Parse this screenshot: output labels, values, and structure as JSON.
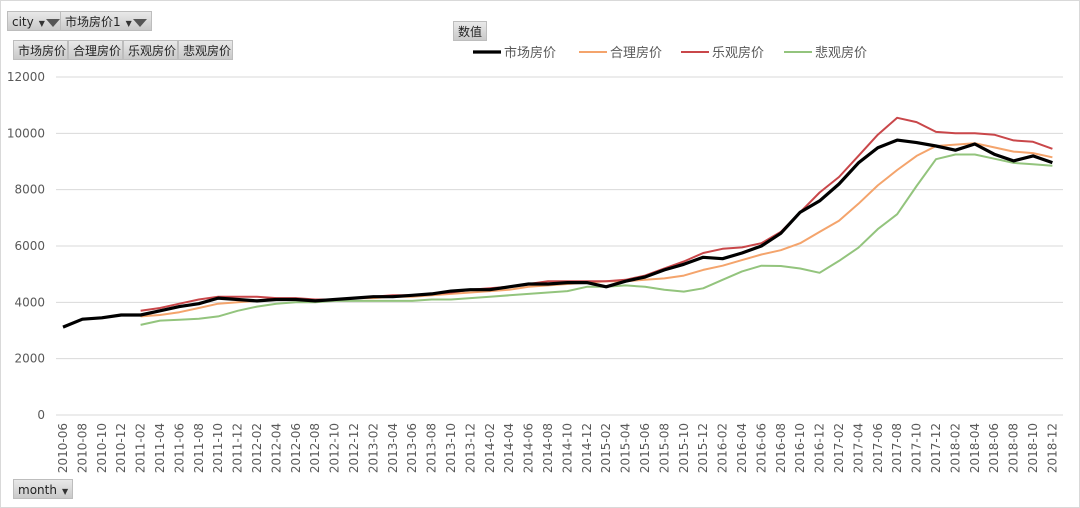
{
  "filters": {
    "city": "city",
    "price_field": "市场房价1"
  },
  "value_buttons": [
    "市场房价",
    "合理房价",
    "乐观房价",
    "悲观房价"
  ],
  "values_button": "数值",
  "axis_button": "month",
  "chart_data": {
    "type": "line",
    "xlabel": "",
    "ylabel": "",
    "ylim": [
      0,
      12000
    ],
    "yticks": [
      0,
      2000,
      4000,
      6000,
      8000,
      10000,
      12000
    ],
    "grid": true,
    "legend_position": "top",
    "x": [
      "2010-06",
      "2010-08",
      "2010-10",
      "2010-12",
      "2011-02",
      "2011-04",
      "2011-06",
      "2011-08",
      "2011-10",
      "2011-12",
      "2012-02",
      "2012-04",
      "2012-06",
      "2012-08",
      "2012-10",
      "2012-12",
      "2013-02",
      "2013-04",
      "2013-06",
      "2013-08",
      "2013-10",
      "2013-12",
      "2014-02",
      "2014-04",
      "2014-06",
      "2014-08",
      "2014-10",
      "2014-12",
      "2015-02",
      "2015-04",
      "2015-06",
      "2015-08",
      "2015-10",
      "2015-12",
      "2016-02",
      "2016-04",
      "2016-06",
      "2016-08",
      "2016-10",
      "2016-12",
      "2017-02",
      "2017-04",
      "2017-06",
      "2017-08",
      "2017-10",
      "2017-12",
      "2018-02",
      "2018-04",
      "2018-06",
      "2018-08",
      "2018-10",
      "2018-12"
    ],
    "series": [
      {
        "name": "市场房价",
        "color": "#000000",
        "values": [
          3120,
          3400,
          3450,
          3550,
          3550,
          3700,
          3850,
          3950,
          4150,
          4100,
          4050,
          4100,
          4100,
          4050,
          4100,
          4150,
          4200,
          4200,
          4250,
          4300,
          4400,
          4450,
          4450,
          4550,
          4650,
          4650,
          4700,
          4700,
          4550,
          4750,
          4900,
          5150,
          5350,
          5600,
          5550,
          5750,
          6000,
          6450,
          7200,
          7600,
          8200,
          8950,
          9490,
          9760,
          9670,
          9550,
          9400,
          9620,
          9260,
          9020,
          9200,
          8960
        ]
      },
      {
        "name": "合理房价",
        "color": "#F4A46C",
        "values": [
          null,
          null,
          null,
          null,
          3500,
          3550,
          3650,
          3800,
          3950,
          4000,
          4050,
          4100,
          4100,
          4100,
          4100,
          4150,
          4150,
          4200,
          4200,
          4250,
          4300,
          4350,
          4400,
          4450,
          4550,
          4600,
          4650,
          4700,
          4750,
          4750,
          4800,
          4850,
          4950,
          5150,
          5300,
          5500,
          5700,
          5850,
          6100,
          6500,
          6900,
          7500,
          8150,
          8700,
          9200,
          9550,
          9600,
          9650,
          9500,
          9350,
          9300,
          9150
        ]
      },
      {
        "name": "乐观房价",
        "color": "#C9474A",
        "values": [
          null,
          null,
          null,
          null,
          3700,
          3800,
          3950,
          4100,
          4200,
          4200,
          4200,
          4150,
          4150,
          4100,
          4100,
          4150,
          4200,
          4250,
          4250,
          4300,
          4350,
          4450,
          4500,
          4550,
          4650,
          4750,
          4750,
          4750,
          4750,
          4800,
          4950,
          5200,
          5450,
          5750,
          5900,
          5950,
          6100,
          6500,
          7200,
          7900,
          8450,
          9200,
          9950,
          10550,
          10400,
          10050,
          10000,
          10000,
          9950,
          9750,
          9700,
          9450
        ]
      },
      {
        "name": "悲观房价",
        "color": "#93C47D",
        "values": [
          null,
          null,
          null,
          null,
          3200,
          3350,
          3380,
          3420,
          3500,
          3700,
          3850,
          3950,
          4000,
          4000,
          4050,
          4050,
          4050,
          4050,
          4050,
          4100,
          4100,
          4150,
          4200,
          4250,
          4300,
          4350,
          4400,
          4550,
          4550,
          4600,
          4550,
          4450,
          4380,
          4500,
          4800,
          5100,
          5300,
          5290,
          5200,
          5050,
          5470,
          5940,
          6600,
          7130,
          8130,
          9080,
          9250,
          9250,
          9100,
          8950,
          8900,
          8850
        ]
      }
    ]
  }
}
